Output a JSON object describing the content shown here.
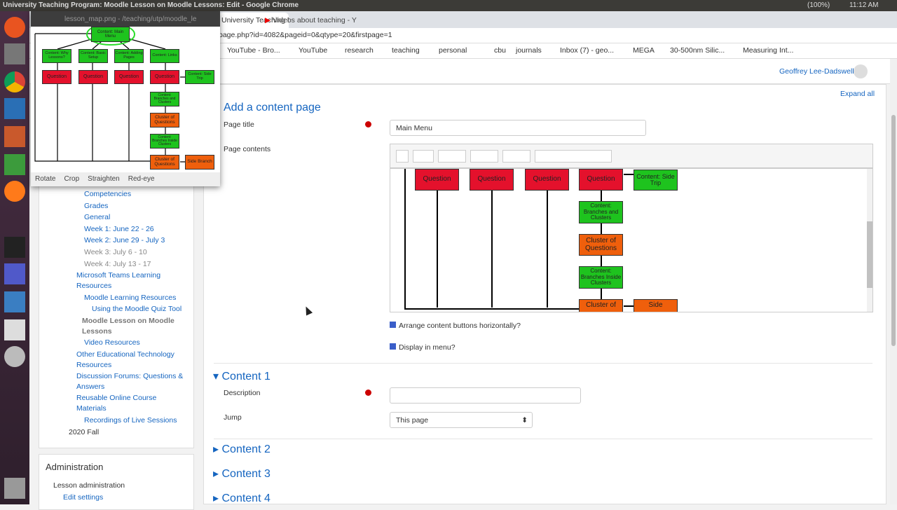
{
  "os_bar": {
    "title": "University Teaching Program: Moodle Lesson on Moodle Lessons: Edit - Google Chrome",
    "battery": "(100%)",
    "time": "11:12 AM"
  },
  "tabs": [
    "lesson_map.png - /teaching/utp/moodle_le",
    "University Teaching Progr",
    "Videos about teaching - Y"
  ],
  "url": "page.php?id=4082&pageid=0&qtype=20&firstpage=1",
  "bookmarks": [
    "YouTube - Bro...",
    "YouTube",
    "research",
    "teaching",
    "personal",
    "cbu",
    "journals",
    "Inbox (7) - geo...",
    "MEGA",
    "30-500nm Silic...",
    "Measuring Int..."
  ],
  "user": "Geoffrey Lee-Dadswell",
  "viewer": {
    "nodes": [
      "Content: Main Menu",
      "Content: Why Lessons?",
      "Content: Basic Setup",
      "Content: Adding Pages",
      "Content: Links",
      "Question",
      "Question",
      "Question",
      "Question",
      "Content: Side Trip",
      "Content: Branches and Clusters",
      "Cluster of Questions",
      "Content: Branches Inside Clusters",
      "Cluster of Questions",
      "Side Branch"
    ],
    "tools": [
      "Rotate",
      "Crop",
      "Straighten",
      "Red-eye"
    ]
  },
  "nav": [
    "Competencies",
    "Grades",
    "General",
    "Week 1: June 22 - 26",
    "Week 2: June 29 - July 3",
    "Week 3: July 6 - 10",
    "Week 4: July 13 - 17",
    "Microsoft Teams Learning Resources",
    "Moodle Learning Resources",
    "Using the Moodle Quiz Tool",
    "Moodle Lesson on Moodle Lessons",
    "Video Resources",
    "Other Educational Technology Resources",
    "Discussion Forums: Questions & Answers",
    "Reusable Online Course Materials",
    "Recordings of Live Sessions",
    "2020 Fall"
  ],
  "admin": {
    "title": "Administration",
    "items": [
      "Lesson administration",
      "Edit settings"
    ]
  },
  "form": {
    "expand_all": "Expand all",
    "heading": "Add a content page",
    "page_title_label": "Page title",
    "page_title_value": "Main Menu",
    "page_contents_label": "Page contents",
    "editor_nodes": [
      "Question",
      "Question",
      "Question",
      "Question",
      "Content: Side Trip",
      "Content: Branches and Clusters",
      "Cluster of Questions",
      "Content: Branches Inside Clusters",
      "Cluster of",
      "Side"
    ],
    "checkboxes": [
      "Arrange content buttons horizontally?",
      "Display in menu?"
    ],
    "sections": [
      "Content 1",
      "Content 2",
      "Content 3",
      "Content 4"
    ],
    "description_label": "Description",
    "jump_label": "Jump",
    "jump_value": "This page"
  }
}
